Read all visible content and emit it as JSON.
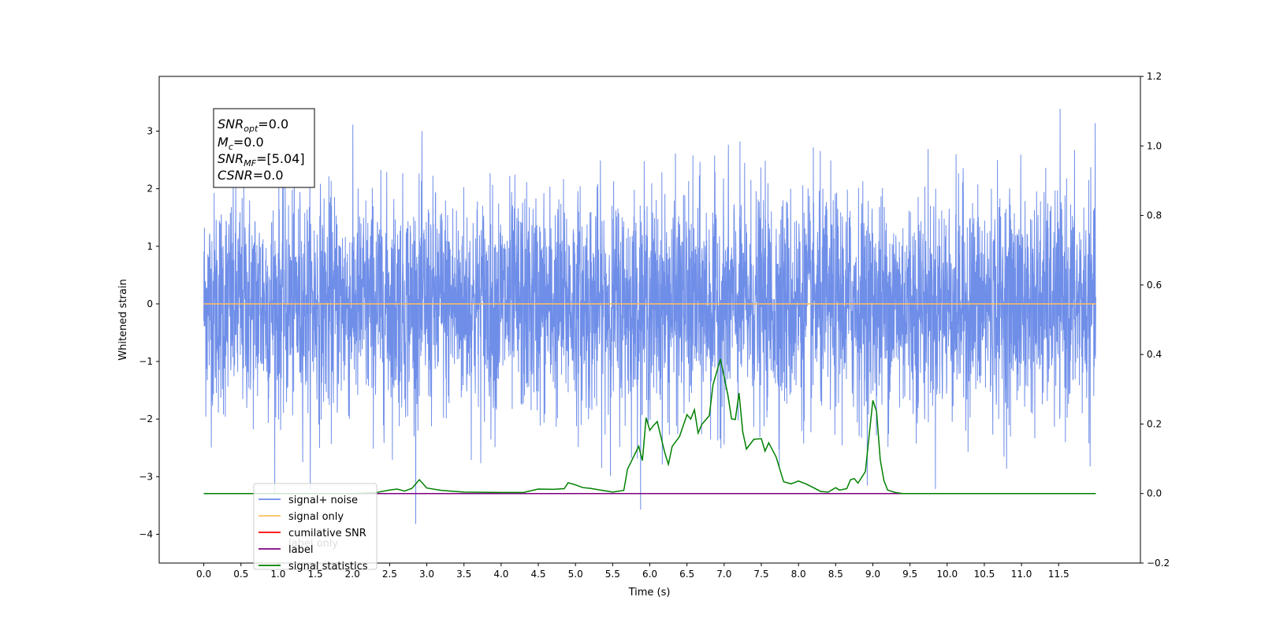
{
  "chart_data": {
    "type": "line",
    "xlabel": "Time (s)",
    "ylabel": "Whitened strain",
    "xlim": [
      -0.6,
      12.6
    ],
    "ylim": [
      -4.5,
      3.95
    ],
    "y2lim": [
      -0.2,
      1.2
    ],
    "x_ticks": [
      "0.0",
      "0.5",
      "1.0",
      "1.5",
      "2.0",
      "2.5",
      "3.0",
      "3.5",
      "4.0",
      "4.5",
      "5.0",
      "5.5",
      "6.0",
      "6.5",
      "7.0",
      "7.5",
      "8.0",
      "8.5",
      "9.0",
      "9.5",
      "10.0",
      "10.5",
      "11.0",
      "11.5"
    ],
    "y_ticks": [
      "3",
      "2",
      "1",
      "0",
      "−1",
      "−2",
      "−3",
      "−4"
    ],
    "y2_ticks": [
      "1.2",
      "1.0",
      "0.8",
      "0.6",
      "0.4",
      "0.2",
      "0.0",
      "−0.2"
    ],
    "annotation": {
      "lines": [
        {
          "var": "SNR",
          "sub": "opt",
          "rest": "=0.0"
        },
        {
          "var": "M",
          "sub": "c",
          "rest": "=0.0"
        },
        {
          "var": "SNR",
          "sub": "MF",
          "rest": "=[5.04]"
        },
        {
          "var": "CSNR",
          "sub": "",
          "rest": "=0.0"
        }
      ]
    },
    "legend": {
      "placement": "lower-left",
      "entries": [
        {
          "label": "signal+ noise",
          "color": "#6f8ee8"
        },
        {
          "label": "signal only",
          "color": "#ffbf5f"
        },
        {
          "label": "cumilative SNR",
          "color": "#ff0000"
        },
        {
          "label": "label",
          "color": "#800080"
        },
        {
          "label": "signal statistics",
          "color": "#008000"
        }
      ],
      "hidden_entry": "label only"
    },
    "series": [
      {
        "name": "signal+ noise",
        "axis": "left",
        "color": "#6f8ee8",
        "x_range": [
          0.0,
          12.0
        ],
        "y_range": [
          -4.1,
          3.6
        ],
        "typical_envelope": [
          -1.5,
          1.5
        ]
      },
      {
        "name": "signal only",
        "axis": "left",
        "color": "#ffbf5f",
        "x": [
          0.0,
          12.0
        ],
        "y": [
          0.0,
          0.0
        ]
      },
      {
        "name": "label",
        "axis": "right",
        "color": "#800080",
        "x": [
          0.0,
          12.0
        ],
        "y": [
          0.0,
          0.0
        ]
      },
      {
        "name": "signal statistics",
        "axis": "right",
        "color": "#008000",
        "x": [
          0.0,
          0.5,
          1.0,
          1.5,
          2.0,
          2.3,
          2.5,
          2.6,
          2.7,
          2.8,
          2.9,
          3.0,
          3.2,
          3.5,
          4.0,
          4.3,
          4.5,
          4.7,
          4.85,
          4.9,
          5.0,
          5.1,
          5.2,
          5.5,
          5.65,
          5.7,
          5.85,
          5.9,
          5.95,
          6.0,
          6.05,
          6.1,
          6.2,
          6.25,
          6.3,
          6.4,
          6.5,
          6.55,
          6.6,
          6.65,
          6.7,
          6.8,
          6.85,
          6.95,
          7.0,
          7.05,
          7.1,
          7.15,
          7.2,
          7.25,
          7.3,
          7.4,
          7.5,
          7.55,
          7.6,
          7.7,
          7.8,
          7.9,
          8.0,
          8.1,
          8.2,
          8.3,
          8.4,
          8.5,
          8.55,
          8.65,
          8.7,
          8.75,
          8.8,
          8.9,
          9.0,
          9.05,
          9.1,
          9.15,
          9.2,
          9.3,
          9.4,
          10.0,
          11.0,
          12.0
        ],
        "y": [
          0.0,
          0.0,
          0.0,
          0.0,
          0.0,
          0.002,
          0.01,
          0.013,
          0.007,
          0.015,
          0.04,
          0.016,
          0.009,
          0.004,
          0.003,
          0.003,
          0.013,
          0.012,
          0.014,
          0.031,
          0.025,
          0.017,
          0.015,
          0.004,
          0.009,
          0.07,
          0.136,
          0.095,
          0.218,
          0.182,
          0.196,
          0.207,
          0.118,
          0.084,
          0.135,
          0.164,
          0.227,
          0.214,
          0.241,
          0.174,
          0.199,
          0.224,
          0.313,
          0.387,
          0.336,
          0.284,
          0.215,
          0.213,
          0.289,
          0.178,
          0.128,
          0.156,
          0.158,
          0.122,
          0.146,
          0.105,
          0.034,
          0.028,
          0.036,
          0.028,
          0.017,
          0.006,
          0.004,
          0.017,
          0.01,
          0.014,
          0.04,
          0.043,
          0.03,
          0.063,
          0.268,
          0.236,
          0.097,
          0.037,
          0.01,
          0.003,
          0.0,
          0.0,
          0.0,
          0.0
        ]
      }
    ]
  }
}
